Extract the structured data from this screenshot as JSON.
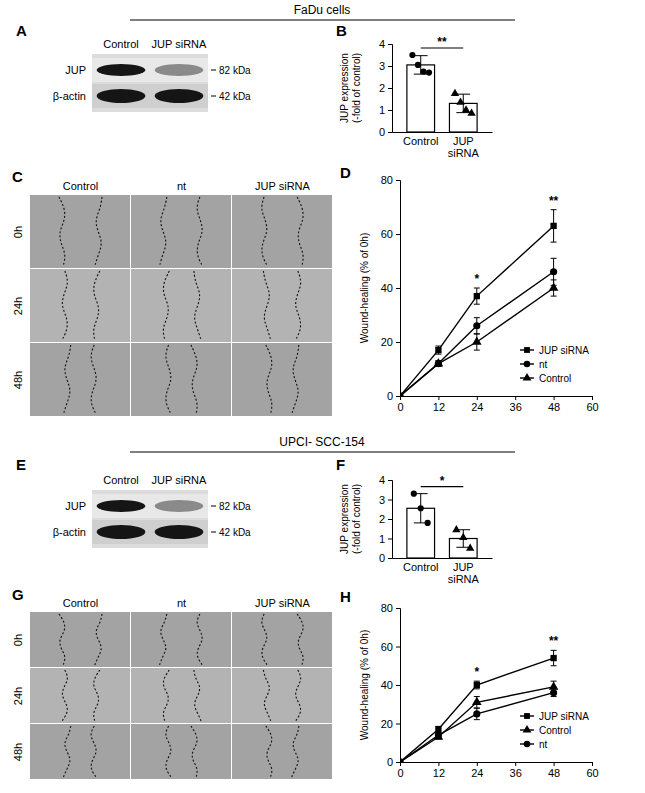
{
  "figure": {
    "sections": [
      {
        "title": "FaDu cells",
        "blot": {
          "panel": "A",
          "lanes": [
            "Control",
            "JUP siRNA"
          ],
          "proteins": [
            "JUP",
            "β-actin"
          ],
          "sizes": [
            "82 kDa",
            "42 kDa"
          ]
        },
        "images": {
          "panel": "C",
          "columns": [
            "Control",
            "nt",
            "JUP siRNA"
          ],
          "rows": [
            "0h",
            "24h",
            "48h"
          ]
        }
      },
      {
        "title": "UPCI- SCC-154",
        "blot": {
          "panel": "E",
          "lanes": [
            "Control",
            "JUP siRNA"
          ],
          "proteins": [
            "JUP",
            "β-actin"
          ],
          "sizes": [
            "82 kDa",
            "42 kDa"
          ]
        },
        "images": {
          "panel": "G",
          "columns": [
            "Control",
            "nt",
            "JUP siRNA"
          ],
          "rows": [
            "0h",
            "24h",
            "48h"
          ]
        }
      }
    ]
  },
  "chart_data": [
    {
      "type": "bar",
      "panel": "B",
      "categories": [
        "Control",
        "JUP siRNA"
      ],
      "values": [
        3.05,
        1.3
      ],
      "errors": [
        0.42,
        0.42
      ],
      "points": [
        [
          3.5,
          3.05,
          2.75,
          2.7
        ],
        [
          1.75,
          1.35,
          1.0,
          0.85
        ]
      ],
      "ylabel": "JUP expression (-fold of control)",
      "ylim": [
        0,
        4
      ],
      "yticks": [
        0,
        1,
        2,
        3,
        4
      ],
      "color": "#ffffff",
      "annotations": [
        {
          "text": "**"
        }
      ]
    },
    {
      "type": "line",
      "panel": "D",
      "x": [
        0,
        12,
        24,
        48
      ],
      "xlim": [
        0,
        60
      ],
      "xticks": [
        0,
        12,
        24,
        36,
        48,
        60
      ],
      "ylim": [
        0,
        80
      ],
      "yticks": [
        0,
        20,
        40,
        60,
        80
      ],
      "ylabel": "Wound-healing (% of 0h)",
      "legend": "right",
      "series": [
        {
          "name": "JUP siRNA",
          "color": "#000000",
          "marker": "square",
          "values": [
            0,
            17,
            37,
            63
          ],
          "errors": [
            0,
            1.5,
            3,
            6
          ]
        },
        {
          "name": "nt",
          "color": "#000000",
          "marker": "circle",
          "values": [
            0,
            12,
            26,
            46
          ],
          "errors": [
            0,
            1,
            3,
            5
          ]
        },
        {
          "name": "Control",
          "color": "#000000",
          "marker": "triangle",
          "values": [
            0,
            12,
            20,
            40
          ],
          "errors": [
            0,
            1,
            3,
            3
          ]
        }
      ],
      "annotations": [
        {
          "text": "*",
          "x": 24
        },
        {
          "text": "**",
          "x": 48
        }
      ]
    },
    {
      "type": "bar",
      "panel": "F",
      "categories": [
        "Control",
        "JUP siRNA"
      ],
      "values": [
        2.55,
        1.0
      ],
      "errors": [
        0.75,
        0.45
      ],
      "points": [
        [
          3.3,
          2.55,
          1.8
        ],
        [
          1.45,
          1.05,
          0.5
        ]
      ],
      "ylabel": "JUP expression (-fold of control)",
      "ylim": [
        0,
        4
      ],
      "yticks": [
        0,
        1,
        2,
        3,
        4
      ],
      "color": "#ffffff",
      "annotations": [
        {
          "text": "*"
        }
      ]
    },
    {
      "type": "line",
      "panel": "H",
      "x": [
        0,
        12,
        24,
        48
      ],
      "xlim": [
        0,
        60
      ],
      "xticks": [
        0,
        12,
        24,
        36,
        48,
        60
      ],
      "ylim": [
        0,
        80
      ],
      "yticks": [
        0,
        20,
        40,
        60,
        80
      ],
      "ylabel": "Wound-healing (% of 0h)",
      "legend": "right",
      "series": [
        {
          "name": "JUP siRNA",
          "color": "#000000",
          "marker": "square",
          "values": [
            0,
            17,
            40,
            54
          ],
          "errors": [
            0,
            1.5,
            2,
            4
          ]
        },
        {
          "name": "Control",
          "color": "#000000",
          "marker": "triangle",
          "values": [
            0,
            13,
            31,
            39
          ],
          "errors": [
            0,
            1,
            3,
            3
          ]
        },
        {
          "name": "nt",
          "color": "#000000",
          "marker": "circle",
          "values": [
            0,
            14,
            25,
            36
          ],
          "errors": [
            0,
            1,
            3,
            2
          ]
        }
      ],
      "annotations": [
        {
          "text": "*",
          "x": 24
        },
        {
          "text": "**",
          "x": 48
        }
      ]
    }
  ]
}
